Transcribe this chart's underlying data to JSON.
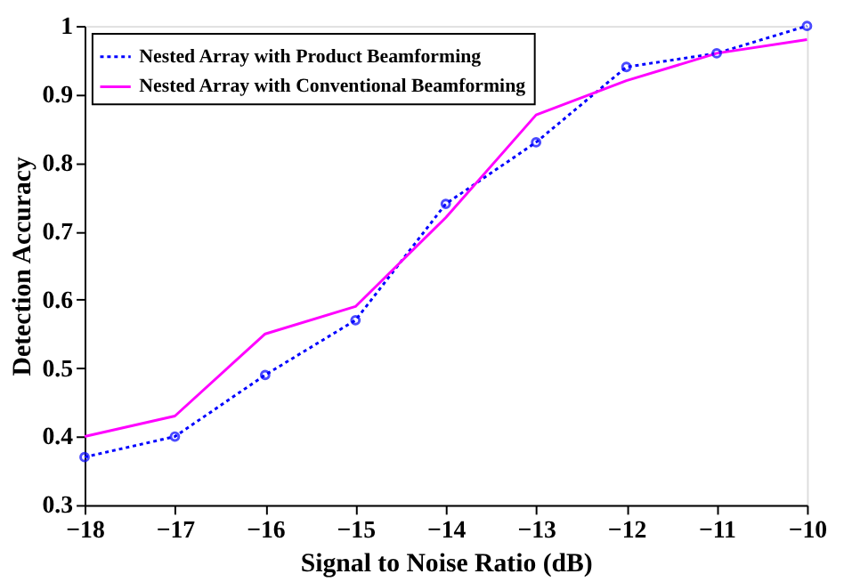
{
  "chart_data": {
    "type": "line",
    "xlabel": "Signal to Noise Ratio (dB)",
    "ylabel": "Detection Accuracy",
    "x": [
      -18,
      -17,
      -16,
      -15,
      -14,
      -13,
      -12,
      -11,
      -10
    ],
    "series": [
      {
        "name": "Nested Array with Product Beamforming",
        "color": "#0000ff",
        "values": [
          0.37,
          0.4,
          0.49,
          0.57,
          0.74,
          0.83,
          0.94,
          0.96,
          1.0
        ],
        "marker": "circle",
        "line_style": "dotted"
      },
      {
        "name": "Nested Array with Conventional Beamforming",
        "color": "#ff00ff",
        "values": [
          0.4,
          0.43,
          0.55,
          0.59,
          0.72,
          0.87,
          0.92,
          0.96,
          0.98
        ],
        "marker": "none",
        "line_style": "solid"
      }
    ],
    "xlim": [
      -18,
      -10
    ],
    "xticks": [
      -18,
      -17,
      -16,
      -15,
      -14,
      -13,
      -12,
      -11,
      -10
    ],
    "ylim": [
      0.3,
      1
    ],
    "yticks": [
      0.3,
      0.4,
      0.5,
      0.6,
      0.7,
      0.8,
      0.9,
      1
    ],
    "grid": false,
    "legend": "top left"
  }
}
